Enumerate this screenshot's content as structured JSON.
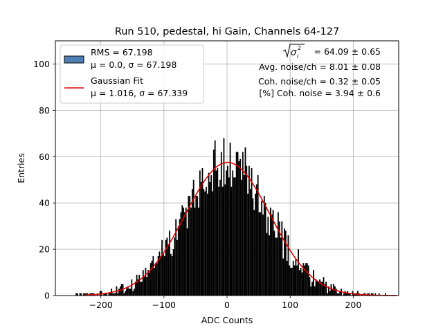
{
  "chart_data": {
    "type": "bar",
    "title": "Run 510, pedestal, hi Gain, Channels 64-127",
    "xlabel": "ADC Counts",
    "ylabel": "Entries",
    "xlim": [
      -272,
      272
    ],
    "ylim": [
      0,
      110
    ],
    "x_ticks": [
      -200,
      -100,
      0,
      100,
      200
    ],
    "y_ticks": [
      0,
      20,
      40,
      60,
      80,
      100
    ],
    "grid": true,
    "bin_width": 2,
    "histogram": {
      "name": "RMS = 67.198",
      "line2": "μ = 0.0, σ = 67.198",
      "fill_color": "#4f7fb4",
      "bar_color": "#000000",
      "x_range": [
        -244,
        268
      ],
      "mean": 0.0,
      "sigma": 67.198,
      "peak_entries": 57.5
    },
    "fit": {
      "name": "Gaussian Fit",
      "line2": "μ = 1.016, σ = 67.339",
      "color": "#e00000",
      "mu": 1.016,
      "sigma": 67.339,
      "amplitude": 57.5,
      "x_range": [
        -225,
        270
      ]
    },
    "legend_placement": "top-left",
    "annotations": [
      "= 64.09 ± 0.65",
      "Avg. noise/ch = 8.01 ± 0.08",
      "Coh. noise/ch = 0.32 ± 0.05",
      "[%] Coh. noise = 3.94 ± 0.6"
    ]
  }
}
